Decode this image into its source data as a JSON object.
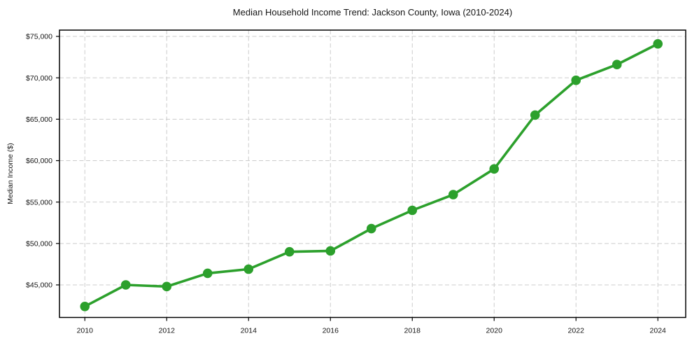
{
  "chart_data": {
    "type": "line",
    "title": "Median Household Income Trend: Jackson County, Iowa (2010-2024)",
    "xlabel": "",
    "ylabel": "Median Income ($)",
    "x": [
      2010,
      2011,
      2012,
      2013,
      2014,
      2015,
      2016,
      2017,
      2018,
      2019,
      2020,
      2021,
      2022,
      2023,
      2024
    ],
    "series": [
      {
        "name": "Median Income",
        "color": "#2ca02c",
        "values": [
          42400,
          45000,
          44800,
          46400,
          46900,
          49000,
          49100,
          51800,
          54000,
          55900,
          59000,
          65500,
          69700,
          71600,
          74100
        ]
      }
    ],
    "xlim": [
      2009.38,
      2024.68
    ],
    "ylim": [
      41070,
      75760
    ],
    "xticks": [
      2010,
      2012,
      2014,
      2016,
      2018,
      2020,
      2022,
      2024
    ],
    "xtick_labels": [
      "2010",
      "2012",
      "2014",
      "2016",
      "2018",
      "2020",
      "2022",
      "2024"
    ],
    "yticks": [
      45000,
      50000,
      55000,
      60000,
      65000,
      70000,
      75000
    ],
    "ytick_labels": [
      "$45,000",
      "$50,000",
      "$55,000",
      "$60,000",
      "$65,000",
      "$70,000",
      "$75,000"
    ],
    "grid": true,
    "grid_style": "dashed",
    "grid_color": "#cccccc",
    "axis_color": "#000000",
    "marker": "circle",
    "marker_size": 6.8,
    "line_width": 3.6,
    "legend_position": "none",
    "background": "#ffffff"
  }
}
